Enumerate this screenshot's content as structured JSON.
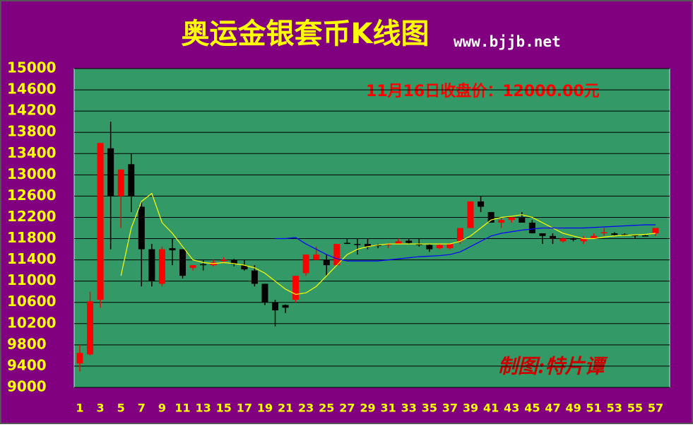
{
  "chart_data": {
    "type": "candlestick",
    "title": "奥运金银套币K线图",
    "subtitle": "www.bjjb.net",
    "annotations": [
      "11月16日收盘价：12000.00元",
      "制图:特片谭"
    ],
    "categories": [
      1,
      null,
      3,
      null,
      5,
      null,
      7,
      null,
      9,
      null,
      11,
      null,
      13,
      null,
      15,
      null,
      17,
      null,
      19,
      null,
      21,
      null,
      23,
      null,
      25,
      null,
      27,
      null,
      29,
      null,
      31,
      null,
      33,
      null,
      35,
      null,
      37,
      null,
      39,
      null,
      41,
      null,
      43,
      null,
      45,
      null,
      47,
      null,
      49,
      null,
      51,
      null,
      53,
      null,
      55,
      null,
      57
    ],
    "open": [
      9450,
      9620,
      10650,
      13500,
      12600,
      13200,
      12400,
      11600,
      10950,
      11620,
      11600,
      11250,
      11320,
      11300,
      11380,
      11400,
      11300,
      11200,
      10950,
      10600,
      10550,
      10650,
      11150,
      11400,
      11400,
      11300,
      11720,
      11700,
      11700,
      11680,
      11680,
      11700,
      11760,
      11700,
      11680,
      11620,
      11620,
      11750,
      12000,
      12500,
      12300,
      12100,
      12150,
      12200,
      12100,
      11900,
      11850,
      11750,
      11800,
      11750,
      11800,
      11900,
      11900,
      11880,
      11870,
      11860,
      11900
    ],
    "high": [
      9800,
      10800,
      13600,
      14000,
      13100,
      13400,
      12500,
      11700,
      11650,
      11800,
      11600,
      11300,
      11400,
      11400,
      11450,
      11420,
      11400,
      11300,
      10950,
      10650,
      10560,
      11100,
      11500,
      11650,
      11500,
      11700,
      11800,
      11800,
      11800,
      11700,
      11720,
      11800,
      11800,
      11800,
      11700,
      11700,
      11700,
      12000,
      12500,
      12600,
      12300,
      12200,
      12200,
      12300,
      12150,
      11900,
      11900,
      11820,
      11820,
      11850,
      11900,
      12000,
      11920,
      11900,
      11880,
      11870,
      12000
    ],
    "low": [
      9300,
      9600,
      10500,
      11600,
      12000,
      12300,
      10900,
      10900,
      10900,
      11300,
      11050,
      11200,
      11200,
      11280,
      11350,
      11280,
      11200,
      10900,
      10550,
      10150,
      10400,
      10600,
      11100,
      11400,
      11100,
      11300,
      11700,
      11500,
      11600,
      11620,
      11620,
      11700,
      11700,
      11650,
      11550,
      11600,
      11600,
      11700,
      12000,
      12300,
      12100,
      12000,
      12100,
      12100,
      11900,
      11700,
      11700,
      11730,
      11750,
      11700,
      11800,
      11850,
      11850,
      11850,
      11800,
      11840,
      11850
    ],
    "close": [
      9650,
      10620,
      13600,
      12600,
      13100,
      12600,
      11600,
      11000,
      11600,
      11580,
      11100,
      11300,
      11300,
      11350,
      11400,
      11320,
      11220,
      10950,
      10600,
      10450,
      10500,
      11100,
      11500,
      11500,
      11300,
      11700,
      11700,
      11680,
      11650,
      11660,
      11700,
      11750,
      11720,
      11680,
      11600,
      11680,
      11700,
      12000,
      12500,
      12400,
      12100,
      12150,
      12200,
      12100,
      11900,
      11850,
      11800,
      11800,
      11780,
      11800,
      11850,
      11920,
      11870,
      11860,
      11850,
      11850,
      12000
    ],
    "up_color": "#ff0000",
    "down_color": "#000000",
    "series": [
      {
        "color": "#ffff00",
        "values": [
          null,
          null,
          null,
          null,
          11100,
          12000,
          12500,
          12650,
          12100,
          11900,
          11650,
          11400,
          11350,
          11330,
          11350,
          11330,
          11300,
          11250,
          11150,
          11000,
          10850,
          10750,
          10780,
          10900,
          11100,
          11300,
          11500,
          11600,
          11650,
          11680,
          11700,
          11700,
          11700,
          11700,
          11700,
          11700,
          11700,
          11750,
          11850,
          12000,
          12150,
          12200,
          12220,
          12250,
          12200,
          12100,
          12000,
          11900,
          11850,
          11800,
          11800,
          11830,
          11850,
          11860,
          11870,
          11880,
          11900
        ]
      },
      {
        "color": "#0000ff",
        "values": [
          null,
          null,
          null,
          null,
          null,
          null,
          null,
          null,
          null,
          null,
          null,
          null,
          null,
          null,
          null,
          null,
          null,
          null,
          null,
          11800,
          11800,
          11820,
          11700,
          11600,
          11500,
          11420,
          11380,
          11380,
          11380,
          11380,
          11400,
          11420,
          11440,
          11460,
          11470,
          11480,
          11500,
          11550,
          11650,
          11750,
          11850,
          11900,
          11930,
          11960,
          11980,
          12000,
          12000,
          12000,
          12000,
          12000,
          12010,
          12020,
          12030,
          12040,
          12050,
          12060,
          12060
        ]
      }
    ],
    "ylim": [
      9000,
      15000
    ],
    "yticks": [
      9000,
      9400,
      9800,
      10200,
      10600,
      11000,
      11400,
      11800,
      12200,
      12600,
      13000,
      13400,
      13800,
      14200,
      14600,
      15000
    ],
    "grid": true
  }
}
